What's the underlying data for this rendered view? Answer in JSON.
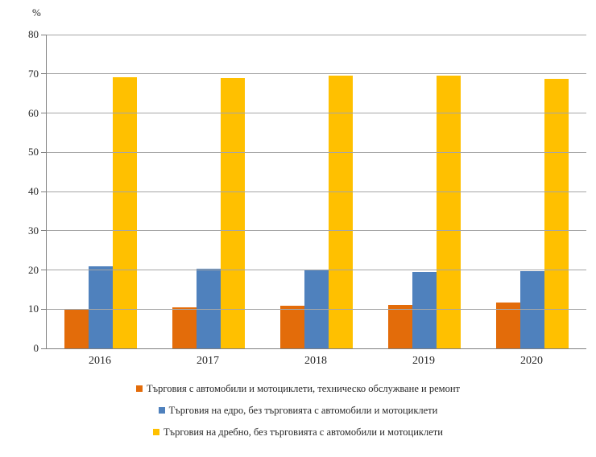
{
  "chart_data": {
    "type": "bar",
    "title": "",
    "ylabel": "%",
    "xlabel": "",
    "categories": [
      "2016",
      "2017",
      "2018",
      "2019",
      "2020"
    ],
    "series": [
      {
        "name": "Търговия с автомобили и мотоциклети, техническо обслужване и ремонт",
        "color": "#E36C0A",
        "values": [
          10.0,
          10.5,
          10.8,
          11.1,
          11.6
        ]
      },
      {
        "name": "Търговия на едро, без търговията с автомобили и мотоциклети",
        "color": "#4F81BD",
        "values": [
          20.9,
          20.4,
          20.1,
          19.5,
          19.6
        ]
      },
      {
        "name": "Търговия на дребно, без търговията с автомобили и мотоциклети",
        "color": "#FFC000",
        "values": [
          69.1,
          68.9,
          69.5,
          69.5,
          68.8
        ]
      }
    ],
    "ylim": [
      0,
      80
    ],
    "ytick_step": 10,
    "grid": true,
    "legend_position": "bottom"
  },
  "colors": {
    "gridline": "#a6a6a6",
    "axis": "#808080",
    "text": "#262626"
  }
}
